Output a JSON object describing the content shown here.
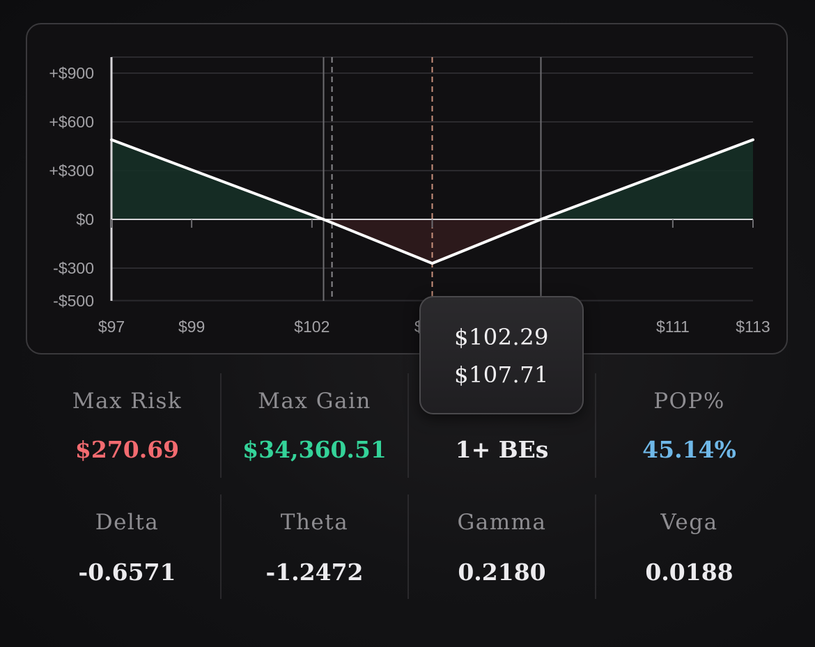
{
  "chart_data": {
    "type": "line",
    "x": [
      97,
      102.29,
      105,
      107.71,
      113
    ],
    "y": [
      490,
      0,
      -270.69,
      0,
      490
    ],
    "xlim": [
      97,
      113
    ],
    "ylim": [
      -500,
      1000
    ],
    "x_ticks": [
      97,
      99,
      102,
      105,
      111,
      113
    ],
    "x_tick_labels": [
      "$97",
      "$99",
      "$102",
      "$105",
      "$111",
      "$113"
    ],
    "y_ticks": [
      900,
      600,
      300,
      0,
      -300,
      -500
    ],
    "y_tick_labels": [
      "+$900",
      "+$600",
      "+$300",
      "$0",
      "-$300",
      "-$500"
    ],
    "breakevens": [
      102.29,
      107.71
    ],
    "dashed_markers": [
      102.5,
      105
    ],
    "grid": true,
    "profit_fill": "#163027",
    "loss_fill": "#2e1a1c",
    "line_color": "#ffffff",
    "current_price_marker_color": "#c9917c"
  },
  "tooltip": {
    "line1": "$102.29",
    "line2": "$107.71"
  },
  "stats": {
    "max_risk": {
      "label": "Max Risk",
      "value": "$270.69",
      "color": "#f36b70"
    },
    "max_gain": {
      "label": "Max Gain",
      "value": "$34,360.51",
      "color": "#34d399"
    },
    "breakevens": {
      "value": "1+ BEs",
      "color": "#ecebee"
    },
    "pop": {
      "label": "POP%",
      "value": "45.14%",
      "color": "#6fb8e8"
    }
  },
  "greeks": {
    "delta": {
      "label": "Delta",
      "value": "-0.6571"
    },
    "theta": {
      "label": "Theta",
      "value": "-1.2472"
    },
    "gamma": {
      "label": "Gamma",
      "value": "0.2180"
    },
    "vega": {
      "label": "Vega",
      "value": "0.0188"
    }
  }
}
